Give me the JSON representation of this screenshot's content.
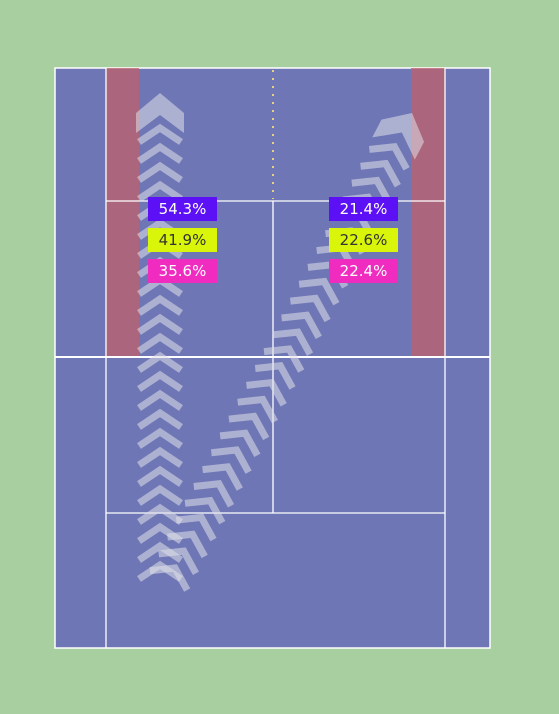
{
  "zones": [
    {
      "labels": [
        "54.3%",
        "41.9%",
        "35.6%"
      ]
    },
    {
      "labels": [
        "21.4%",
        "22.6%",
        "22.4%"
      ]
    }
  ]
}
